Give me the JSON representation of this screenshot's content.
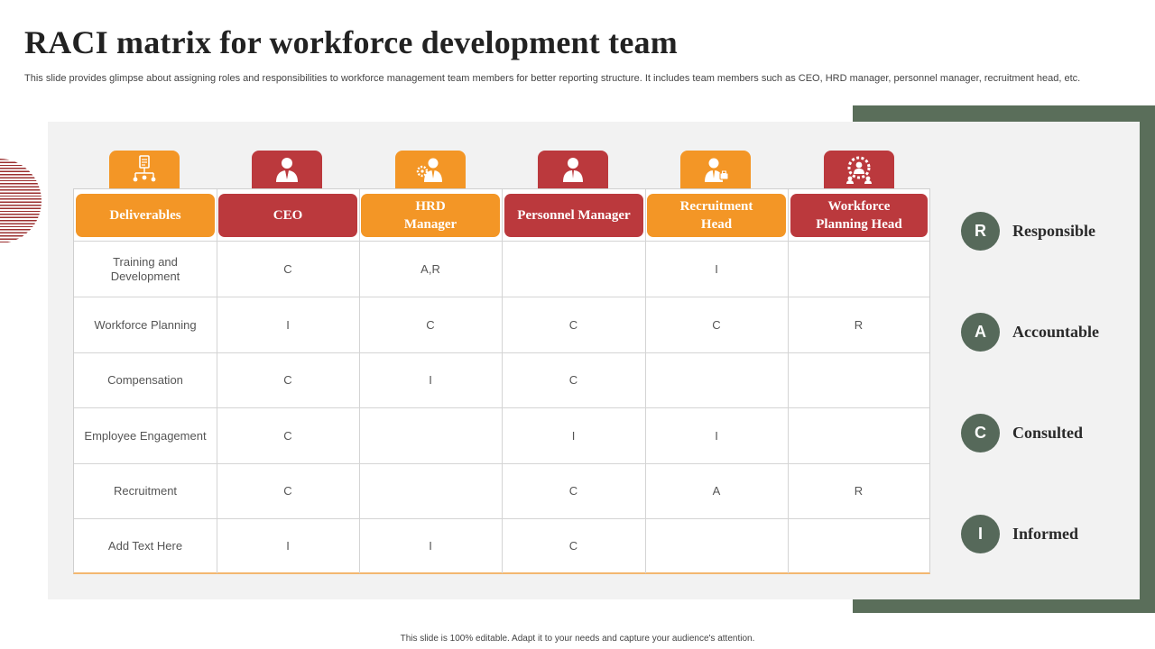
{
  "slide": {
    "title": "RACI matrix for workforce development team",
    "subtitle": "This slide provides glimpse about assigning roles and responsibilities to workforce management team members for better reporting structure. It includes team members such as CEO, HRD manager, personnel manager, recruitment head, etc.",
    "footer": "This slide is 100% editable.  Adapt it to your needs and capture your audience's attention."
  },
  "colors": {
    "orange": "#f39626",
    "red": "#bb393d",
    "green": "#5a6e5a",
    "badge": "#56695a"
  },
  "columns": [
    {
      "label": "Deliverables",
      "icon": "flowchart-clipboard-icon",
      "color": "orange"
    },
    {
      "label": "CEO",
      "icon": "executive-icon",
      "color": "red"
    },
    {
      "label": "HRD\nManager",
      "icon": "manager-gears-icon",
      "color": "orange"
    },
    {
      "label": "Personnel Manager",
      "icon": "person-tie-icon",
      "color": "red"
    },
    {
      "label": "Recruitment\nHead",
      "icon": "recruiter-icon",
      "color": "orange"
    },
    {
      "label": "Workforce\nPlanning Head",
      "icon": "team-gear-icon",
      "color": "red"
    }
  ],
  "rows": [
    {
      "deliverable": "Training  and\nDevelopment",
      "cells": [
        "C",
        "A,R",
        "",
        "I",
        ""
      ]
    },
    {
      "deliverable": "Workforce Planning",
      "cells": [
        "I",
        "C",
        "C",
        "C",
        "R"
      ]
    },
    {
      "deliverable": "Compensation",
      "cells": [
        "C",
        "I",
        "C",
        "",
        ""
      ]
    },
    {
      "deliverable": "Employee Engagement",
      "cells": [
        "C",
        "",
        "I",
        "I",
        ""
      ]
    },
    {
      "deliverable": "Recruitment",
      "cells": [
        "C",
        "",
        "C",
        "A",
        "R"
      ]
    },
    {
      "deliverable": "Add Text Here",
      "cells": [
        "I",
        "I",
        "C",
        "",
        ""
      ]
    }
  ],
  "legend": [
    {
      "letter": "R",
      "label": "Responsible"
    },
    {
      "letter": "A",
      "label": "Accountable"
    },
    {
      "letter": "C",
      "label": "Consulted"
    },
    {
      "letter": "I",
      "label": "Informed"
    }
  ]
}
